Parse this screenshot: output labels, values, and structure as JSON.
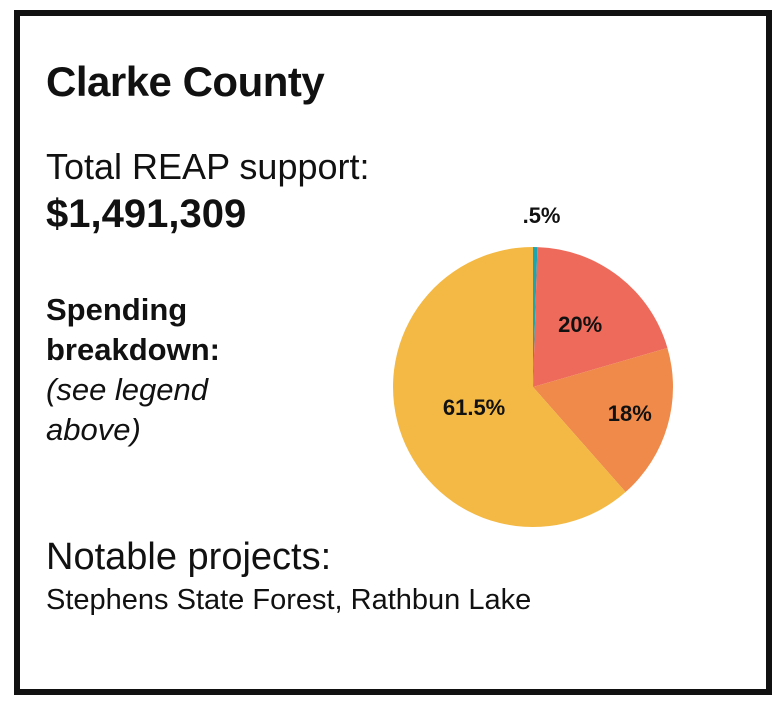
{
  "card": {
    "county": "Clarke County",
    "support_label": "Total REAP support:",
    "support_value": "$1,491,309",
    "spending_heading": "Spending breakdown:",
    "spending_note": "(see legend above)",
    "projects_heading": "Notable projects:",
    "projects_list": "Stephens State Forest, Rathbun Lake"
  },
  "chart_data": {
    "type": "pie",
    "title": "",
    "slices": [
      {
        "label": ".5%",
        "value": 0.5,
        "color": "#1aa5b0"
      },
      {
        "label": "20%",
        "value": 20,
        "color": "#ee6a5a"
      },
      {
        "label": "18%",
        "value": 18,
        "color": "#ef8a4a"
      },
      {
        "label": "61.5%",
        "value": 61.5,
        "color": "#f4b944"
      }
    ]
  }
}
